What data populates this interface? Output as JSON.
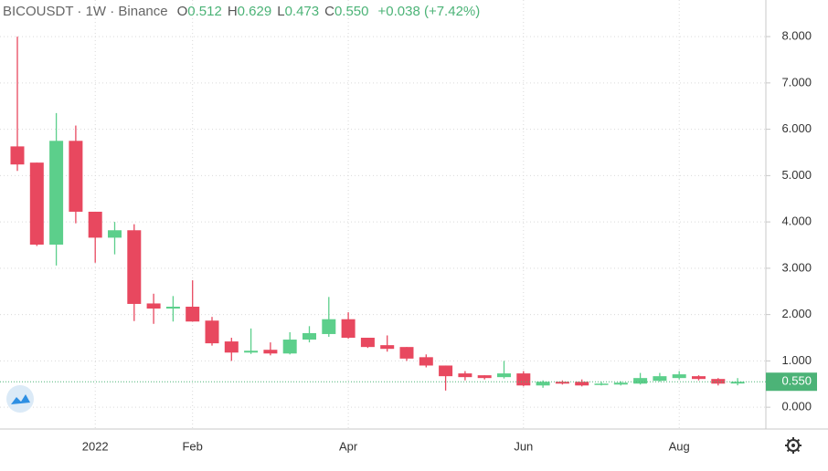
{
  "header": {
    "symbol": "BICOUSDT · 1W · Binance",
    "ohlc": [
      {
        "key": "O",
        "value": "0.512"
      },
      {
        "key": "H",
        "value": "0.629"
      },
      {
        "key": "L",
        "value": "0.473"
      },
      {
        "key": "C",
        "value": "0.550"
      }
    ],
    "change": "+0.038 (+7.42%)"
  },
  "chart_data": {
    "type": "candlestick",
    "categories": [
      null,
      null,
      null,
      null,
      "2022",
      null,
      null,
      null,
      null,
      "Feb",
      null,
      null,
      null,
      null,
      null,
      null,
      null,
      "Apr",
      null,
      null,
      null,
      null,
      null,
      null,
      null,
      null,
      "Jun",
      null,
      null,
      null,
      null,
      null,
      null,
      null,
      "Aug",
      null,
      null,
      null
    ],
    "open": [
      5.63,
      5.28,
      3.51,
      5.75,
      4.22,
      3.66,
      3.82,
      2.24,
      2.13,
      2.17,
      1.87,
      1.42,
      1.18,
      1.24,
      1.16,
      1.46,
      1.58,
      1.9,
      1.5,
      1.34,
      1.3,
      1.08,
      0.9,
      0.73,
      0.69,
      0.65,
      0.73,
      0.47,
      0.55,
      0.55,
      0.49,
      0.49,
      0.51,
      0.57,
      0.63,
      0.67,
      0.61,
      0.512
    ],
    "high": [
      8.0,
      5.28,
      6.35,
      6.08,
      4.22,
      4.0,
      3.95,
      2.45,
      2.4,
      2.74,
      1.95,
      1.5,
      1.7,
      1.4,
      1.62,
      1.75,
      2.38,
      2.05,
      1.5,
      1.55,
      1.3,
      1.14,
      0.9,
      0.78,
      0.69,
      1.0,
      0.78,
      0.58,
      0.58,
      0.6,
      0.55,
      0.56,
      0.74,
      0.74,
      0.78,
      0.69,
      0.63,
      0.629
    ],
    "low": [
      5.1,
      3.48,
      3.06,
      3.97,
      3.12,
      3.3,
      1.86,
      1.8,
      1.85,
      1.85,
      1.33,
      1.0,
      1.15,
      1.12,
      1.14,
      1.4,
      1.52,
      1.48,
      1.28,
      1.2,
      1.0,
      0.86,
      0.36,
      0.58,
      0.6,
      0.62,
      0.45,
      0.42,
      0.49,
      0.45,
      0.47,
      0.47,
      0.49,
      0.55,
      0.6,
      0.58,
      0.47,
      0.473
    ],
    "close": [
      5.24,
      3.51,
      5.75,
      4.22,
      3.66,
      3.82,
      2.23,
      2.13,
      2.17,
      1.85,
      1.38,
      1.18,
      1.22,
      1.16,
      1.46,
      1.6,
      1.9,
      1.5,
      1.3,
      1.26,
      1.05,
      0.9,
      0.67,
      0.65,
      0.63,
      0.73,
      0.47,
      0.55,
      0.51,
      0.47,
      0.51,
      0.53,
      0.63,
      0.67,
      0.71,
      0.61,
      0.51,
      0.55
    ],
    "up_color": "#5ccf8b",
    "down_color": "#e8485f",
    "ylim": [
      -0.47,
      8.79
    ],
    "yticks": [
      {
        "value": 0,
        "label": "0.000"
      },
      {
        "value": 1,
        "label": "1.000"
      },
      {
        "value": 2,
        "label": "2.000"
      },
      {
        "value": 3,
        "label": "3.000"
      },
      {
        "value": 4,
        "label": "4.000"
      },
      {
        "value": 5,
        "label": "5.000"
      },
      {
        "value": 6,
        "label": "6.000"
      },
      {
        "value": 7,
        "label": "7.000"
      },
      {
        "value": 8,
        "label": "8.000"
      }
    ],
    "last_price": {
      "value": 0.55,
      "label": "0.550",
      "color": "#4cb377"
    },
    "grid": true
  }
}
